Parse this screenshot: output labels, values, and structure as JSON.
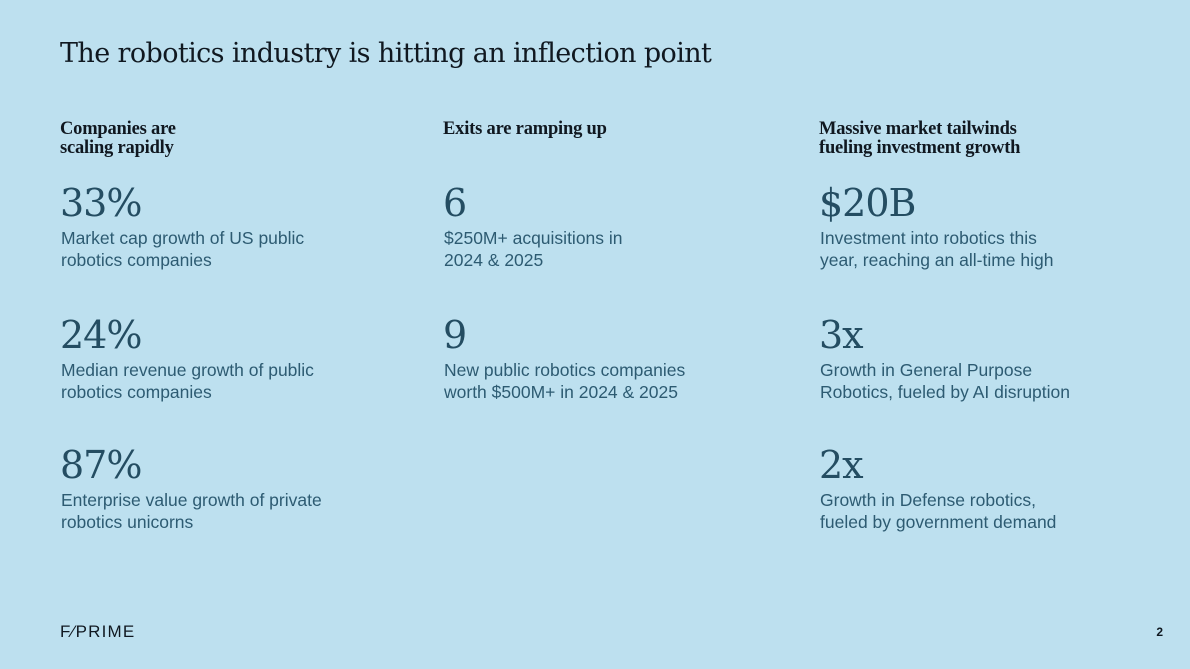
{
  "slide": {
    "title": "The robotics industry is hitting an inflection point",
    "page_number": "2",
    "logo": "F⁄PRIME"
  },
  "columns": [
    {
      "heading": "Companies are\nscaling rapidly",
      "stats": [
        {
          "value": "33%",
          "description": "Market cap growth of US public robotics companies"
        },
        {
          "value": "24%",
          "description": "Median revenue growth of public robotics companies"
        },
        {
          "value": "87%",
          "description": "Enterprise value growth of private robotics unicorns"
        }
      ]
    },
    {
      "heading": "Exits are ramping up",
      "stats": [
        {
          "value": "6",
          "description": "$250M+ acquisitions in 2024 & 2025"
        },
        {
          "value": "9",
          "description": "New public robotics companies worth $500M+ in 2024 & 2025"
        }
      ]
    },
    {
      "heading": "Massive market tailwinds fueling investment growth",
      "stats": [
        {
          "value": "$20B",
          "description": "Investment into robotics this year, reaching an all-time high"
        },
        {
          "value": "3x",
          "description": "Growth in General Purpose Robotics, fueled by AI disruption"
        },
        {
          "value": "2x",
          "description": "Growth in Defense robotics, fueled by government demand"
        }
      ]
    }
  ],
  "colors": {
    "background": "#bde0ef",
    "title_text": "#101820",
    "stat_value": "#244d62",
    "stat_description": "#2d5b72"
  }
}
